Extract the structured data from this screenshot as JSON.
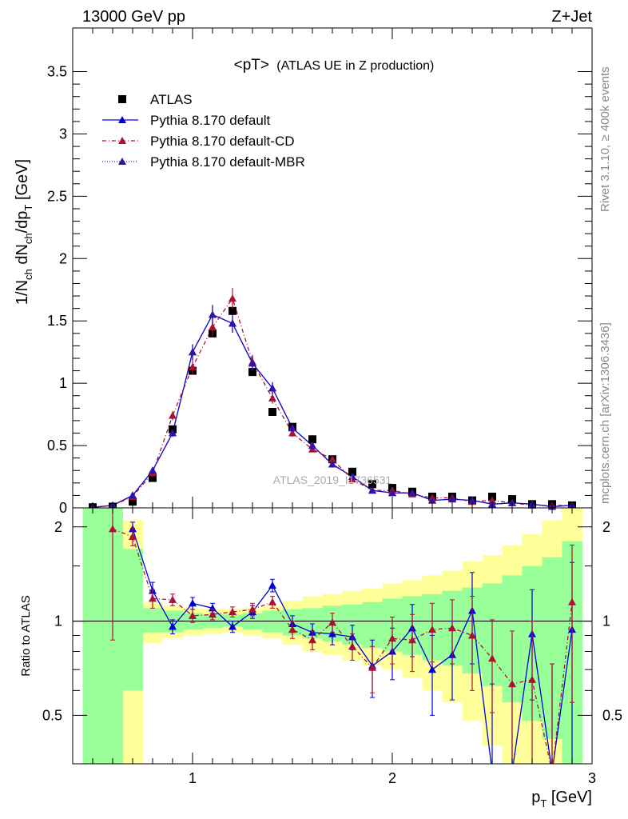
{
  "header": {
    "left": "13000 GeV pp",
    "right": "Z+Jet"
  },
  "side": {
    "rivet": "Rivet 3.1.10, ≥ 400k events",
    "mcplots": "mcplots.cern.ch [arXiv:1306.3436]"
  },
  "watermark": "ATLAS_2019_I1736531",
  "chart_data": [
    {
      "type": "scatter",
      "title": "<pT> (ATLAS UE in Z production)",
      "title_main": "<pT>",
      "title_sub": "(ATLAS UE in Z production)",
      "ylabel": "1/N_ch dN_ch/dp_T [GeV]",
      "xlim": [
        0.4,
        3.0
      ],
      "ylim": [
        0,
        3.85
      ],
      "yticks": [
        0,
        0.5,
        1,
        1.5,
        2,
        2.5,
        3,
        3.5
      ],
      "ytick_labels": [
        "0",
        "0.5",
        "1",
        "1.5",
        "2",
        "2.5",
        "3",
        "3.5"
      ],
      "legend_placement": "top-left",
      "x": [
        0.5,
        0.6,
        0.7,
        0.8,
        0.9,
        1.0,
        1.1,
        1.2,
        1.3,
        1.4,
        1.5,
        1.6,
        1.7,
        1.8,
        1.9,
        2.0,
        2.1,
        2.2,
        2.3,
        2.4,
        2.5,
        2.6,
        2.7,
        2.8,
        2.9
      ],
      "series": [
        {
          "name": "ATLAS",
          "marker": "square",
          "color": "#000000",
          "values": [
            0.005,
            0.01,
            0.05,
            0.24,
            0.63,
            1.1,
            1.4,
            1.58,
            1.09,
            0.77,
            0.65,
            0.55,
            0.39,
            0.29,
            0.19,
            0.16,
            0.13,
            0.09,
            0.09,
            0.06,
            0.09,
            0.07,
            0.03,
            0.03,
            0.02
          ]
        },
        {
          "name": "Pythia 8.170 default",
          "marker": "triangle",
          "line": "solid",
          "color": "#0000dd",
          "values": [
            0.004,
            0.02,
            0.1,
            0.3,
            0.6,
            1.25,
            1.55,
            1.48,
            1.16,
            0.96,
            0.64,
            0.5,
            0.35,
            0.25,
            0.14,
            0.12,
            0.12,
            0.06,
            0.07,
            0.06,
            0.03,
            0.04,
            0.03,
            0.01,
            0.02
          ]
        },
        {
          "name": "Pythia 8.170 default-CD",
          "marker": "triangle",
          "line": "dashdot",
          "color": "#aa1133",
          "values": [
            0.004,
            0.02,
            0.09,
            0.28,
            0.74,
            1.13,
            1.45,
            1.68,
            1.17,
            0.88,
            0.6,
            0.47,
            0.39,
            0.23,
            0.14,
            0.14,
            0.11,
            0.08,
            0.08,
            0.05,
            0.06,
            0.04,
            0.02,
            0.02,
            0.02
          ]
        },
        {
          "name": "Pythia 8.170 default-MBR",
          "marker": "triangle",
          "line": "dotted",
          "color": "#3311aa",
          "values": [
            0.004,
            0.02,
            0.1,
            0.3,
            0.6,
            1.25,
            1.55,
            1.48,
            1.16,
            0.96,
            0.64,
            0.5,
            0.35,
            0.25,
            0.14,
            0.12,
            0.12,
            0.06,
            0.07,
            0.06,
            0.03,
            0.04,
            0.03,
            0.01,
            0.02
          ]
        }
      ]
    },
    {
      "type": "scatter",
      "ylabel": "Ratio to ATLAS",
      "xlabel": "p_T [GeV]",
      "xlim": [
        0.4,
        3.0
      ],
      "ylim": [
        0.35,
        2.3
      ],
      "xticks": [
        1,
        2,
        3
      ],
      "xtick_labels": [
        "1",
        "2",
        "3"
      ],
      "yticks": [
        0.5,
        1,
        2
      ],
      "ytick_labels": [
        "0.5",
        "1",
        "2"
      ],
      "reference_line": 1,
      "x": [
        0.5,
        0.6,
        0.7,
        0.8,
        0.9,
        1.0,
        1.1,
        1.2,
        1.3,
        1.4,
        1.5,
        1.6,
        1.7,
        1.8,
        1.9,
        2.0,
        2.1,
        2.2,
        2.3,
        2.4,
        2.5,
        2.6,
        2.7,
        2.8,
        2.9
      ],
      "band_1sigma_green": {
        "low": [
          0.1,
          0.1,
          0.6,
          0.92,
          0.92,
          0.94,
          0.95,
          0.96,
          0.94,
          0.92,
          0.9,
          0.88,
          0.86,
          0.84,
          0.82,
          0.8,
          0.78,
          0.75,
          0.72,
          0.68,
          0.62,
          0.55,
          0.48,
          0.42,
          0.35
        ],
        "high": [
          3.0,
          3.0,
          1.7,
          1.1,
          1.08,
          1.06,
          1.05,
          1.05,
          1.06,
          1.08,
          1.09,
          1.1,
          1.12,
          1.13,
          1.15,
          1.18,
          1.2,
          1.22,
          1.25,
          1.28,
          1.32,
          1.4,
          1.5,
          1.6,
          1.8
        ]
      },
      "band_2sigma_yellow": {
        "low": [
          0.05,
          0.05,
          0.3,
          0.85,
          0.88,
          0.9,
          0.91,
          0.92,
          0.9,
          0.88,
          0.84,
          0.8,
          0.78,
          0.75,
          0.72,
          0.7,
          0.66,
          0.6,
          0.55,
          0.48,
          0.4,
          0.35,
          0.3,
          0.28,
          0.25
        ],
        "high": [
          3.0,
          3.0,
          2.1,
          1.15,
          1.12,
          1.1,
          1.09,
          1.09,
          1.1,
          1.12,
          1.16,
          1.2,
          1.22,
          1.25,
          1.27,
          1.32,
          1.35,
          1.4,
          1.45,
          1.55,
          1.62,
          1.75,
          1.9,
          2.1,
          2.35
        ]
      },
      "series": [
        {
          "name": "Pythia 8.170 default",
          "color": "#0000dd",
          "line": "solid",
          "values": [
            null,
            null,
            1.97,
            1.25,
            0.96,
            1.14,
            1.1,
            0.96,
            1.07,
            1.3,
            0.98,
            0.92,
            0.91,
            0.89,
            0.72,
            0.8,
            0.95,
            0.7,
            0.78,
            1.08,
            0.33,
            0.33,
            0.91,
            0.33,
            0.94
          ],
          "err": [
            0,
            0,
            0.1,
            0.08,
            0.05,
            0.05,
            0.04,
            0.04,
            0.05,
            0.06,
            0.06,
            0.06,
            0.07,
            0.08,
            0.15,
            0.15,
            0.18,
            0.2,
            0.22,
            0.35,
            0.3,
            0.3,
            0.35,
            0.4,
            0.6
          ]
        },
        {
          "name": "Pythia 8.170 default-CD",
          "color": "#aa1133",
          "line": "dashdot",
          "values": [
            null,
            1.97,
            1.86,
            1.18,
            1.17,
            1.04,
            1.05,
            1.07,
            1.09,
            1.15,
            0.94,
            0.87,
            0.99,
            0.83,
            0.71,
            0.88,
            0.87,
            0.94,
            0.95,
            0.9,
            0.76,
            0.63,
            0.65,
            0.33,
            1.15
          ],
          "err": [
            0,
            1.1,
            0.12,
            0.08,
            0.05,
            0.05,
            0.04,
            0.04,
            0.05,
            0.05,
            0.06,
            0.06,
            0.07,
            0.08,
            0.12,
            0.15,
            0.18,
            0.2,
            0.22,
            0.3,
            0.25,
            0.3,
            0.35,
            0.4,
            0.6
          ]
        }
      ]
    }
  ]
}
